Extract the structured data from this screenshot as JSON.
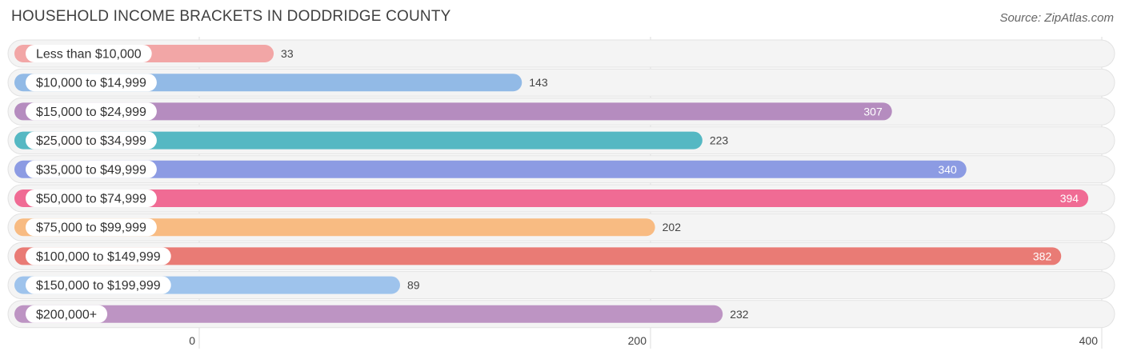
{
  "chart_data": {
    "type": "bar",
    "orientation": "horizontal",
    "title": "HOUSEHOLD INCOME BRACKETS IN DODDRIDGE COUNTY",
    "source": "Source: ZipAtlas.com",
    "categories": [
      "Less than $10,000",
      "$10,000 to $14,999",
      "$15,000 to $24,999",
      "$25,000 to $34,999",
      "$35,000 to $49,999",
      "$50,000 to $74,999",
      "$75,000 to $99,999",
      "$100,000 to $149,999",
      "$150,000 to $199,999",
      "$200,000+"
    ],
    "values": [
      33,
      143,
      307,
      223,
      340,
      394,
      202,
      382,
      89,
      232
    ],
    "colors": [
      "#f2a6a6",
      "#92bae6",
      "#b58cbf",
      "#55b8c3",
      "#8c9be3",
      "#f06b94",
      "#f8bb82",
      "#e97b75",
      "#9ec3ec",
      "#bd94c3"
    ],
    "xlim": [
      0,
      400
    ],
    "xticks": [
      0,
      200,
      400
    ],
    "xlabel": "",
    "ylabel": "",
    "grid": true,
    "legend": "none"
  }
}
